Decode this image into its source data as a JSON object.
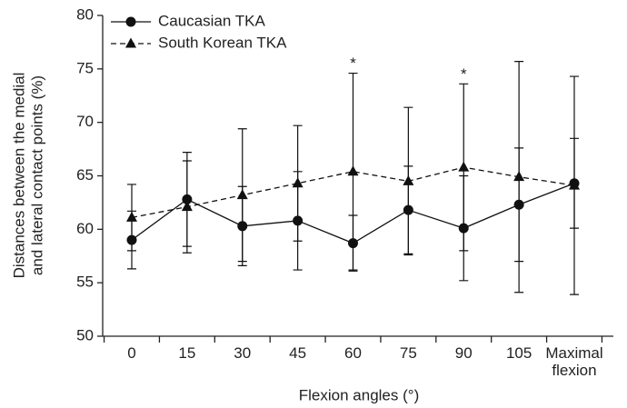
{
  "chart_data": {
    "type": "line",
    "x_label": "Flexion angles (°)",
    "y_label": [
      "Distances between the medial",
      "and lateral contact points (%)"
    ],
    "categories": [
      "0",
      "15",
      "30",
      "45",
      "60",
      "75",
      "90",
      "105",
      "Maximal flexion"
    ],
    "series": [
      {
        "name": "Caucasian TKA",
        "color": "#111111",
        "marker": "circle",
        "dash": false,
        "values": [
          59.0,
          62.8,
          60.3,
          60.8,
          58.7,
          61.8,
          60.1,
          62.3,
          64.3
        ],
        "errors": [
          2.7,
          4.4,
          3.7,
          4.6,
          2.6,
          4.1,
          4.9,
          5.3,
          4.2
        ]
      },
      {
        "name": "South Korean TKA",
        "color": "#111111",
        "marker": "triangle",
        "dash": true,
        "values": [
          61.1,
          62.1,
          63.2,
          64.3,
          65.4,
          64.5,
          65.8,
          64.9,
          64.1
        ],
        "errors": [
          3.1,
          4.3,
          6.2,
          5.4,
          9.2,
          6.9,
          7.8,
          10.8,
          10.2
        ]
      }
    ],
    "annotations": [
      {
        "text": "*",
        "category": "60"
      },
      {
        "text": "*",
        "category": "90"
      }
    ],
    "ylim": [
      50,
      80
    ],
    "yticks": [
      50,
      55,
      60,
      65,
      70,
      75,
      80
    ],
    "legend": "upper-left"
  }
}
